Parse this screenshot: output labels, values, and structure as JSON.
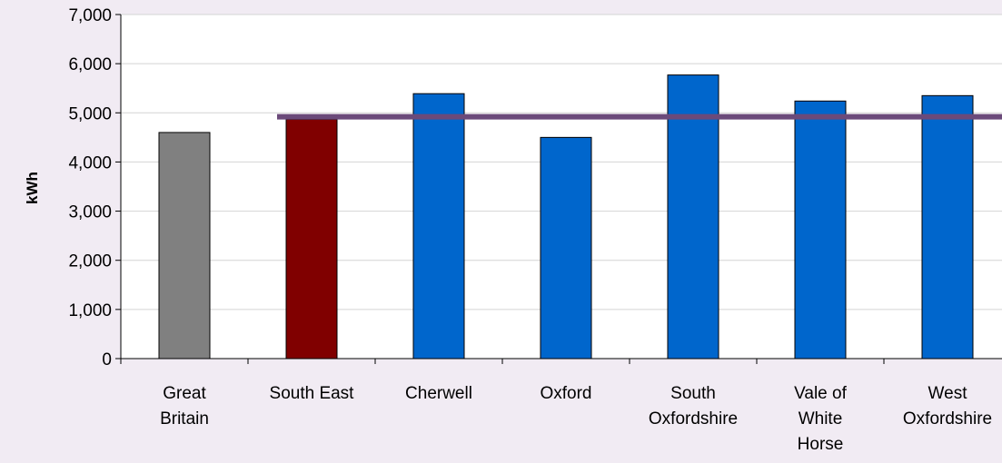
{
  "chart_data": {
    "type": "bar",
    "title": "",
    "ylabel": "kWh",
    "xlabel": "",
    "ylim": [
      0,
      7000
    ],
    "yticks": [
      0,
      1000,
      2000,
      3000,
      4000,
      5000,
      6000,
      7000
    ],
    "ytick_labels": [
      "0",
      "1,000",
      "2,000",
      "3,000",
      "4,000",
      "5,000",
      "6,000",
      "7,000"
    ],
    "grid": true,
    "categories": [
      [
        "Great",
        "Britain"
      ],
      [
        "South East"
      ],
      [
        "Cherwell"
      ],
      [
        "Oxford"
      ],
      [
        "South",
        "Oxfordshire"
      ],
      [
        "Vale of",
        "White",
        "Horse"
      ],
      [
        "West",
        "Oxfordshire"
      ]
    ],
    "values": [
      4600,
      4870,
      5390,
      4500,
      5770,
      5240,
      5350
    ],
    "bar_colors": [
      "#808080",
      "#800000",
      "#0066cc",
      "#0066cc",
      "#0066cc",
      "#0066cc",
      "#0066cc"
    ],
    "reference_line": {
      "value": 4920,
      "color": "#6b4a7a",
      "start_category": 1
    }
  }
}
